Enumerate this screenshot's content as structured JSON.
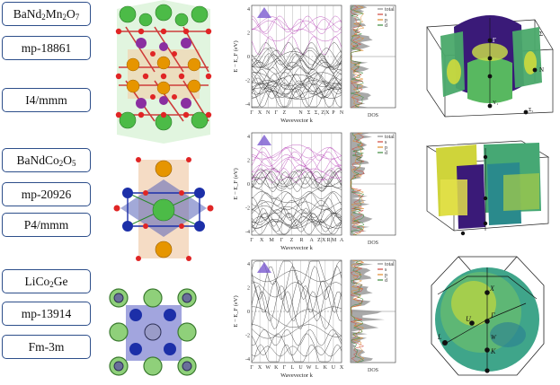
{
  "rows": [
    {
      "formula_parts": [
        {
          "t": "BaNd"
        },
        {
          "s": "2"
        },
        {
          "t": "Mn"
        },
        {
          "s": "2"
        },
        {
          "t": "O"
        },
        {
          "s": "7"
        }
      ],
      "mp_id": "mp-18861",
      "space_group": "I4/mmm",
      "band": {
        "ylabel": "E − E_F (eV)",
        "xlabel": "Wavevector k",
        "yticks": [
          "4",
          "2",
          "0",
          "-2",
          "-4"
        ],
        "kpoints": [
          "Γ",
          "X",
          "N",
          "Γ",
          "Z",
          "",
          "N",
          "Σ",
          "Σ₁",
          "Z|X",
          "P",
          "N"
        ],
        "dos_label": "DOS",
        "dos_legend": [
          "total",
          "s",
          "p",
          "d"
        ]
      }
    },
    {
      "formula_parts": [
        {
          "t": "BaNdCo"
        },
        {
          "s": "2"
        },
        {
          "t": "O"
        },
        {
          "s": "5"
        }
      ],
      "mp_id": "mp-20926",
      "space_group": "P4/mmm",
      "band": {
        "ylabel": "E − E_F (eV)",
        "xlabel": "Wavevector k",
        "yticks": [
          "4",
          "2",
          "0",
          "-2",
          "-4"
        ],
        "kpoints": [
          "Γ",
          "X",
          "M",
          "Γ",
          "Z",
          "R",
          "A",
          "Z|X",
          "R|M",
          "A"
        ],
        "dos_label": "DOS",
        "dos_legend": [
          "total",
          "s",
          "p",
          "d"
        ]
      }
    },
    {
      "formula_parts": [
        {
          "t": "LiCo"
        },
        {
          "s": "2"
        },
        {
          "t": "Ge"
        }
      ],
      "mp_id": "mp-13914",
      "space_group": "Fm-3m",
      "band": {
        "ylabel": "E − E_F (eV)",
        "xlabel": "Wavevector k",
        "yticks": [
          "4",
          "2",
          "0",
          "-2",
          "-4"
        ],
        "kpoints": [
          "Γ",
          "X",
          "W",
          "K",
          "Γ",
          "L",
          "U",
          "W",
          "L",
          "K",
          "U",
          "X"
        ],
        "dos_label": "DOS",
        "dos_legend": [
          "total",
          "s",
          "p",
          "d"
        ]
      }
    }
  ],
  "fermi_surface_labels": {
    "top": [
      "Γ",
      "X",
      "Z",
      "N",
      "Σ",
      "Y₁",
      "Σ₁"
    ],
    "bottom": [
      "X",
      "Γ",
      "U",
      "L",
      "W",
      "K"
    ]
  },
  "colors": {
    "box_border": "#2d4e8a",
    "band_magenta": "#b02fb0",
    "band_black": "#222222",
    "dos_fill": "#8c8c8c",
    "dos_s": "#d0463b",
    "dos_p": "#e08a2a",
    "dos_d": "#3b8a3b",
    "atom_green": "#4cbb47",
    "atom_red": "#d42020",
    "atom_orange": "#e69500",
    "atom_purple": "#8a2fa0",
    "atom_blue": "#1c2fa8",
    "fs_purple": "#3a1a78",
    "fs_green": "#3aaa6a",
    "fs_yellow": "#d7d930"
  }
}
